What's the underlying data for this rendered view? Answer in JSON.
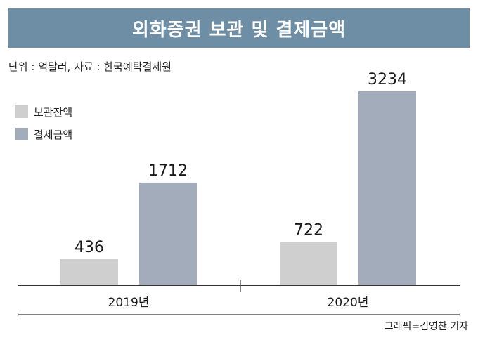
{
  "title": "외화증권 보관 및 결제금액",
  "subtitle": "단위 : 억달러, 자료 : 한국예탁결제원",
  "credit": "그래픽=김영찬 기자",
  "colors": {
    "title_bar": "#6d8ea5",
    "storage": "#cfcfcf",
    "settlement": "#a3acbb",
    "axis": "#333333"
  },
  "chart_data": {
    "type": "bar",
    "categories": [
      "2019년",
      "2020년"
    ],
    "series": [
      {
        "name": "보관잔액",
        "values": [
          436,
          722
        ]
      },
      {
        "name": "결제금액",
        "values": [
          1712,
          3234
        ]
      }
    ],
    "ylim": [
      0,
      3234
    ],
    "legend_position": "top-left",
    "grid": false
  }
}
